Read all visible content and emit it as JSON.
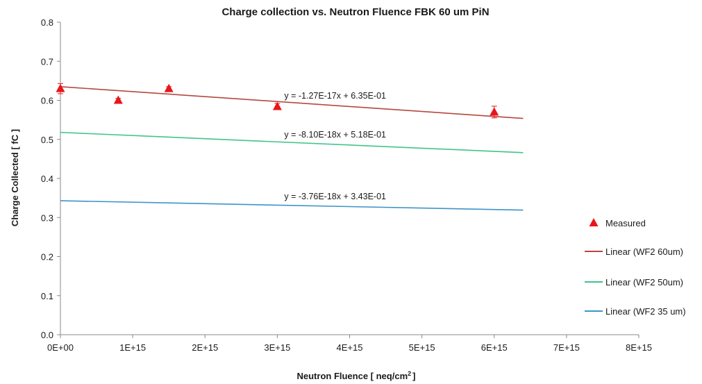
{
  "chart_data": {
    "type": "scatter",
    "title": "Charge collection vs. Neutron Fluence FBK 60 um PiN",
    "xlabel": "Neutron Fluence [ neq/cm",
    "xlabel_sup": "2",
    "xlabel_end": "]",
    "ylabel": "Charge Collected [ fC ]",
    "xlim": [
      0,
      8000000000000000.0
    ],
    "ylim": [
      0,
      0.8
    ],
    "x_ticks": [
      0,
      1000000000000000.0,
      2000000000000000.0,
      3000000000000000.0,
      4000000000000000.0,
      5000000000000000.0,
      6000000000000000.0,
      7000000000000000.0,
      8000000000000000.0
    ],
    "x_tick_labels": [
      "0E+00",
      "1E+15",
      "2E+15",
      "3E+15",
      "4E+15",
      "5E+15",
      "6E+15",
      "7E+15",
      "8E+15"
    ],
    "y_ticks": [
      0,
      0.1,
      0.2,
      0.3,
      0.4,
      0.5,
      0.6,
      0.7,
      0.8
    ],
    "y_tick_labels": [
      "0.0",
      "0.1",
      "0.2",
      "0.3",
      "0.4",
      "0.5",
      "0.6",
      "0.7",
      "0.8"
    ],
    "grid": false,
    "legend_position": "right",
    "measured": {
      "name": "Measured",
      "color": "#e8151b",
      "points": [
        {
          "x": 0,
          "y": 0.63,
          "err": 0.013
        },
        {
          "x": 800000000000000.0,
          "y": 0.6,
          "err": 0.005
        },
        {
          "x": 1500000000000000.0,
          "y": 0.63,
          "err": 0.005
        },
        {
          "x": 3000000000000000.0,
          "y": 0.584,
          "err": 0.008
        },
        {
          "x": 6000000000000000.0,
          "y": 0.57,
          "err": 0.015
        }
      ]
    },
    "fits": [
      {
        "name": "Linear (WF2 60um)",
        "slope": -1.27e-17,
        "intercept": 0.635,
        "x_range": [
          0,
          6400000000000000.0
        ],
        "equation": "y = -1.27E-17x + 6.35E-01",
        "color": "#b5473f"
      },
      {
        "name": "Linear (WF2 50um)",
        "slope": -8.1e-18,
        "intercept": 0.518,
        "x_range": [
          0,
          6400000000000000.0
        ],
        "equation": "y = -8.10E-18x + 5.18E-01",
        "color": "#3ec58a"
      },
      {
        "name": "Linear (WF2 35 um)",
        "slope": -3.76e-18,
        "intercept": 0.343,
        "x_range": [
          0,
          6400000000000000.0
        ],
        "equation": "y = -3.76E-18x + 3.43E-01",
        "color": "#3c94c6"
      }
    ]
  }
}
